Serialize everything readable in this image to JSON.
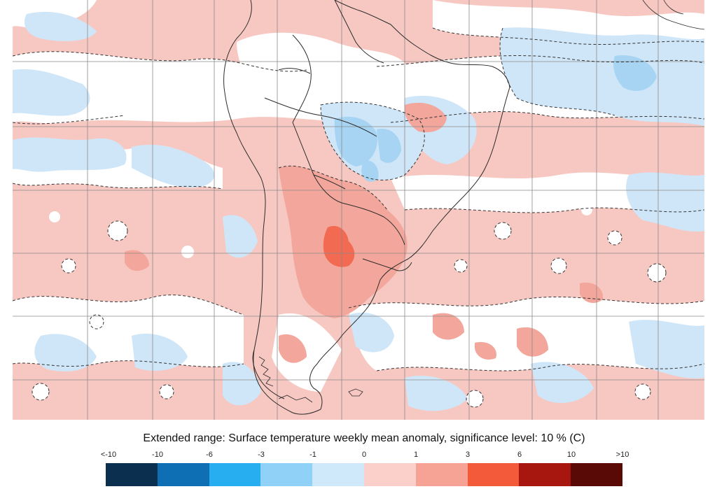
{
  "map": {
    "colors": {
      "ocean_base": "#f7c8c2",
      "positive_1": "#f7c8c2",
      "positive_3": "#f3a79c",
      "positive_6": "#f26a52",
      "negative_1": "#cfe6f8",
      "negative_3": "#a7d4f2",
      "neutral": "#ffffff",
      "coastline": "#2b2b2b",
      "grid": "#8a8a8a"
    }
  },
  "caption": {
    "text": "Extended range: Surface temperature weekly mean anomaly, significance level: 10 % (C)"
  },
  "legend": {
    "labels": [
      "<-10",
      "-10",
      "-6",
      "-3",
      "-1",
      "0",
      "1",
      "3",
      "6",
      "10",
      ">10"
    ],
    "colors": [
      "#0a2f4f",
      "#0f6fb4",
      "#27aef0",
      "#8fd1f7",
      "#cfe9fa",
      "#fbd0cb",
      "#f6a396",
      "#f35a3a",
      "#a8170f",
      "#5a0a06"
    ]
  }
}
